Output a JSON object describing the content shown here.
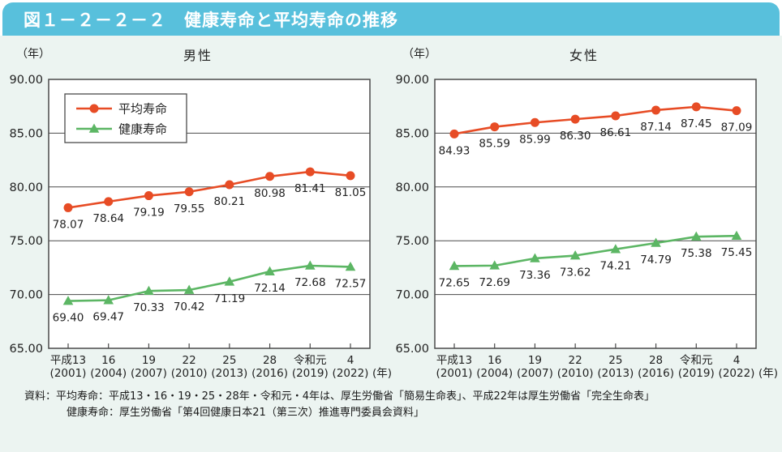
{
  "header": {
    "title": "図１－２－２－２　健康寿命と平均寿命の推移"
  },
  "colors": {
    "header_bg": "#58c0dc",
    "page_bg": "#ecf4f1",
    "plot_bg": "#ffffff",
    "axis": "#4a4a4a",
    "text": "#222222",
    "series_red": "#e74c25",
    "series_green": "#5cb664"
  },
  "chart_data": [
    {
      "type": "line",
      "title": "男性",
      "y_unit": "（年）",
      "x_unit": "(年)",
      "ylim": [
        65,
        90
      ],
      "ytick_step": 5,
      "grid": true,
      "legend": {
        "show": true,
        "position": "top-left"
      },
      "categories": [
        "平成13",
        "16",
        "19",
        "22",
        "25",
        "28",
        "令和元",
        "4"
      ],
      "categories_sub": [
        "(2001)",
        "(2004)",
        "(2007)",
        "(2010)",
        "(2013)",
        "(2016)",
        "(2019)",
        "(2022)"
      ],
      "series": [
        {
          "name": "平均寿命",
          "color_key": "series_red",
          "marker": "circle",
          "values": [
            78.07,
            78.64,
            79.19,
            79.55,
            80.21,
            80.98,
            81.41,
            81.05
          ]
        },
        {
          "name": "健康寿命",
          "color_key": "series_green",
          "marker": "triangle",
          "values": [
            69.4,
            69.47,
            70.33,
            70.42,
            71.19,
            72.14,
            72.68,
            72.57
          ]
        }
      ]
    },
    {
      "type": "line",
      "title": "女性",
      "y_unit": "（年）",
      "x_unit": "(年)",
      "ylim": [
        65,
        90
      ],
      "ytick_step": 5,
      "grid": true,
      "legend": {
        "show": false,
        "position": "top-left"
      },
      "categories": [
        "平成13",
        "16",
        "19",
        "22",
        "25",
        "28",
        "令和元",
        "4"
      ],
      "categories_sub": [
        "(2001)",
        "(2004)",
        "(2007)",
        "(2010)",
        "(2013)",
        "(2016)",
        "(2019)",
        "(2022)"
      ],
      "series": [
        {
          "name": "平均寿命",
          "color_key": "series_red",
          "marker": "circle",
          "values": [
            84.93,
            85.59,
            85.99,
            86.3,
            86.61,
            87.14,
            87.45,
            87.09
          ]
        },
        {
          "name": "健康寿命",
          "color_key": "series_green",
          "marker": "triangle",
          "values": [
            72.65,
            72.69,
            73.36,
            73.62,
            74.21,
            74.79,
            75.38,
            75.45
          ]
        }
      ]
    }
  ],
  "footer": {
    "line1": "資料：平均寿命：平成13・16・19・25・28年・令和元・4年は、厚生労働省「簡易生命表」、平成22年は厚生労働省「完全生命表」",
    "line2": "健康寿命：厚生労働省「第4回健康日本21（第三次）推進専門委員会資料」"
  }
}
